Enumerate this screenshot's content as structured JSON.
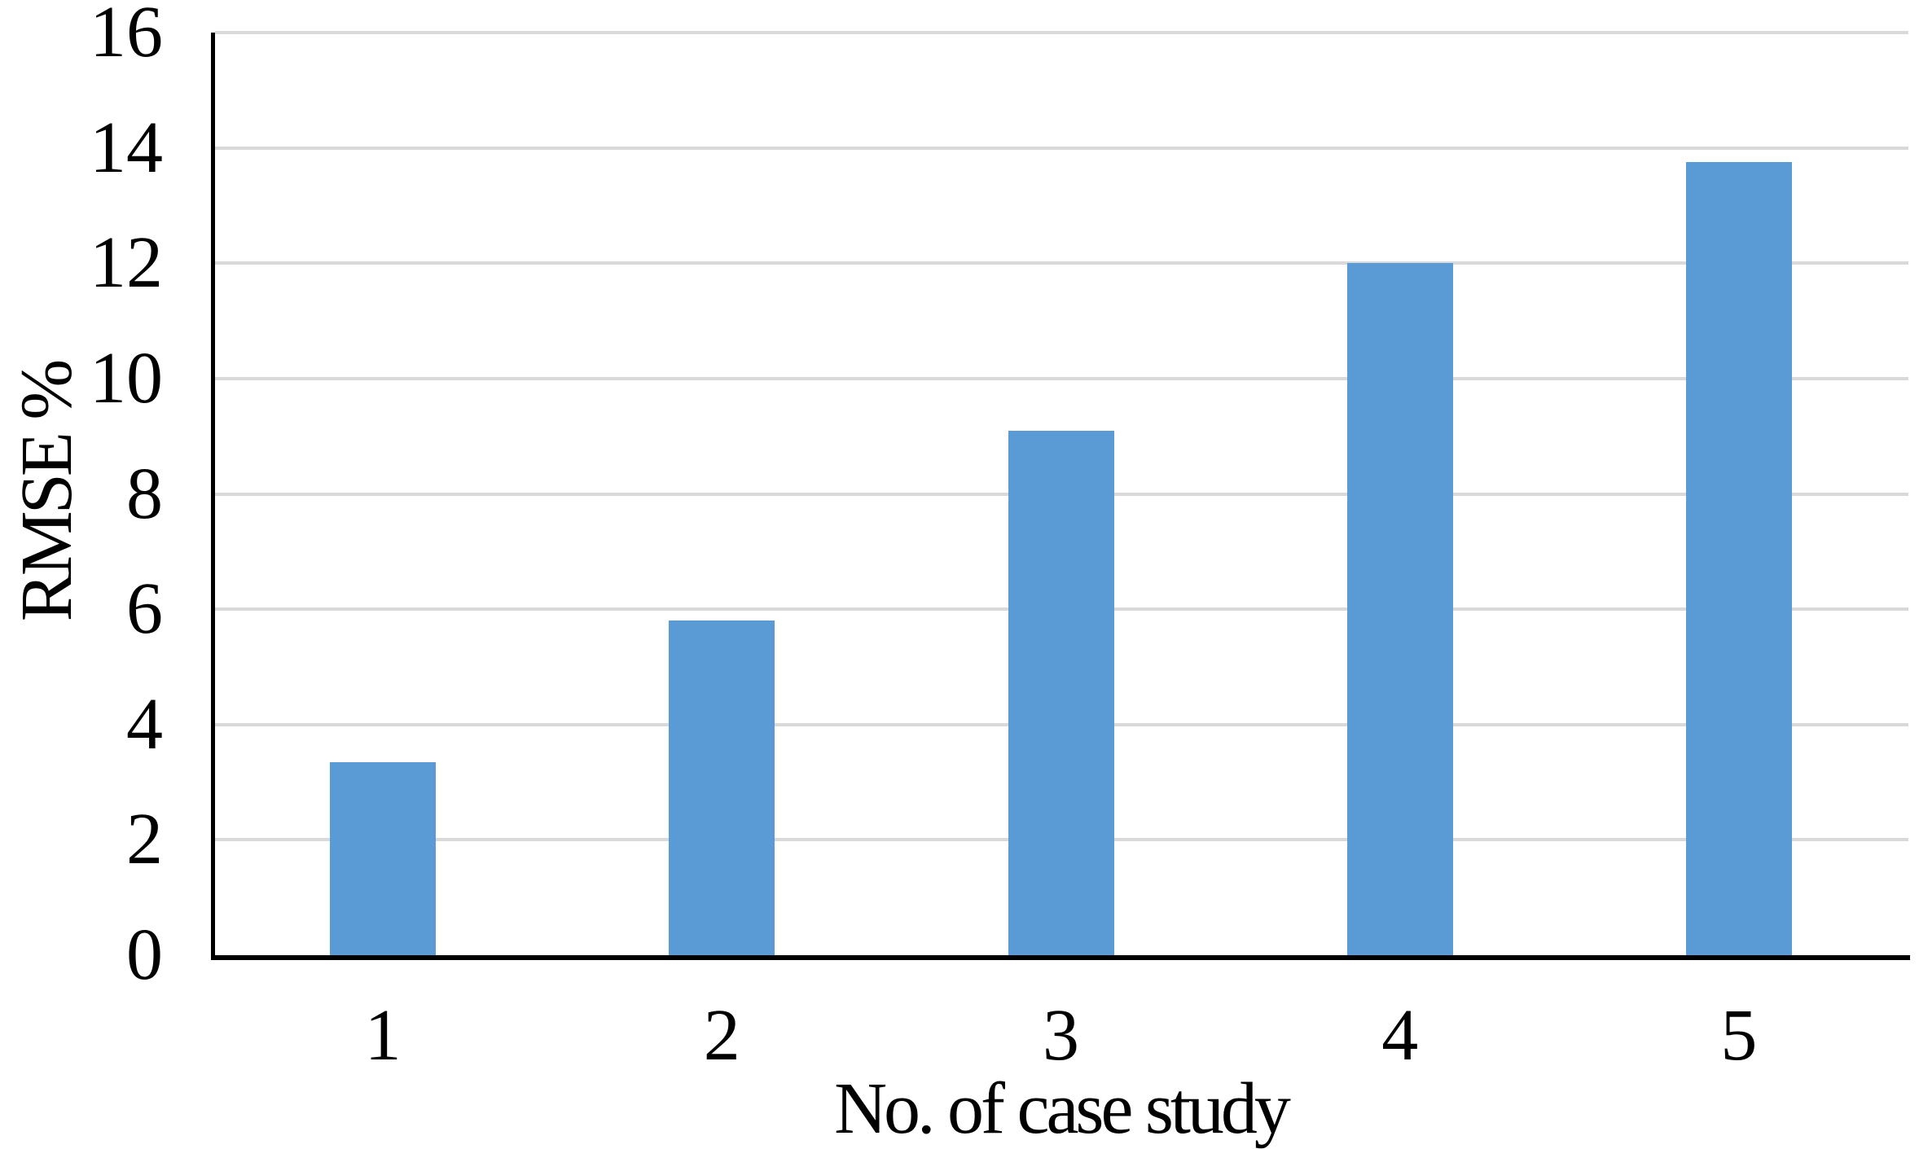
{
  "chart_data": {
    "type": "bar",
    "xlabel": "No. of case study",
    "ylabel": "RMSE %",
    "categories": [
      "1",
      "2",
      "3",
      "4",
      "5"
    ],
    "values": [
      3.35,
      5.8,
      9.1,
      12.0,
      13.75
    ],
    "ylim": [
      0,
      16
    ],
    "yticks": [
      0,
      2,
      4,
      6,
      8,
      10,
      12,
      14,
      16
    ],
    "grid": "horizontal",
    "legend": "none",
    "bar_color": "#5B9BD5",
    "gridline_color": "#D9D9D9",
    "axis_color": "#000000",
    "text_color": "#000000",
    "background": "#FFFFFF"
  }
}
